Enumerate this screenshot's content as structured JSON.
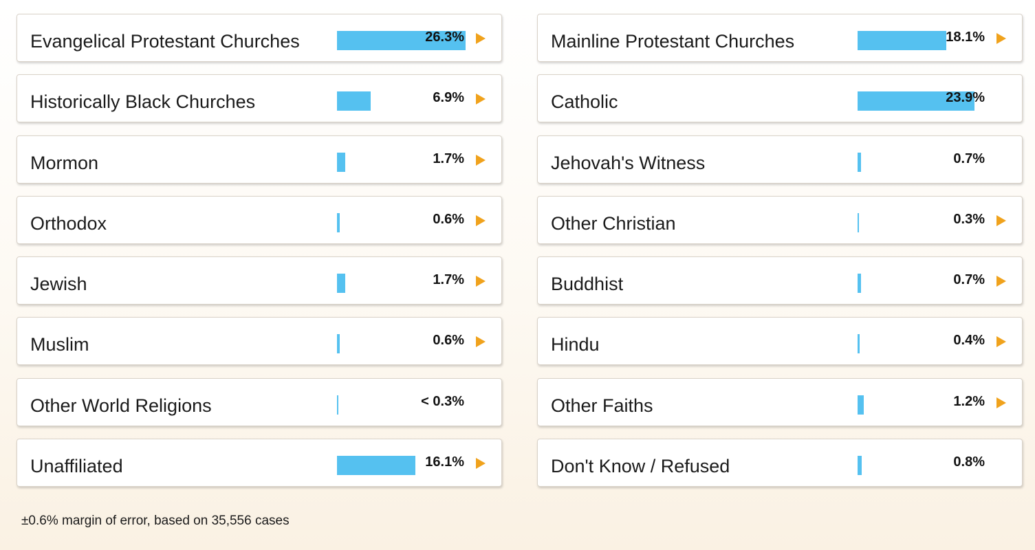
{
  "chart_data": {
    "type": "bar",
    "unit": "%",
    "items": [
      {
        "label": "Evangelical Protestant Churches",
        "value": 26.3,
        "display": "26.3%",
        "expandable": true
      },
      {
        "label": "Mainline Protestant Churches",
        "value": 18.1,
        "display": "18.1%",
        "expandable": true
      },
      {
        "label": "Historically Black Churches",
        "value": 6.9,
        "display": "6.9%",
        "expandable": true
      },
      {
        "label": "Catholic",
        "value": 23.9,
        "display": "23.9%",
        "expandable": false
      },
      {
        "label": "Mormon",
        "value": 1.7,
        "display": "1.7%",
        "expandable": true
      },
      {
        "label": "Jehovah's Witness",
        "value": 0.7,
        "display": "0.7%",
        "expandable": false
      },
      {
        "label": "Orthodox",
        "value": 0.6,
        "display": "0.6%",
        "expandable": true
      },
      {
        "label": "Other Christian",
        "value": 0.3,
        "display": "0.3%",
        "expandable": true
      },
      {
        "label": "Jewish",
        "value": 1.7,
        "display": "1.7%",
        "expandable": true
      },
      {
        "label": "Buddhist",
        "value": 0.7,
        "display": "0.7%",
        "expandable": true
      },
      {
        "label": "Muslim",
        "value": 0.6,
        "display": "0.6%",
        "expandable": true
      },
      {
        "label": "Hindu",
        "value": 0.4,
        "display": "0.4%",
        "expandable": true
      },
      {
        "label": "Other World Religions",
        "value": 0.2,
        "display": "< 0.3%",
        "expandable": false
      },
      {
        "label": "Other Faiths",
        "value": 1.2,
        "display": "1.2%",
        "expandable": true
      },
      {
        "label": "Unaffiliated",
        "value": 16.1,
        "display": "16.1%",
        "expandable": true
      },
      {
        "label": "Don't Know / Refused",
        "value": 0.8,
        "display": "0.8%",
        "expandable": false
      }
    ]
  },
  "footnote": "±0.6% margin of error, based on 35,556 cases",
  "colors": {
    "bar": "#55c1f0",
    "arrow": "#f0a21c"
  },
  "icons": {
    "expand": "play-arrow-icon"
  }
}
